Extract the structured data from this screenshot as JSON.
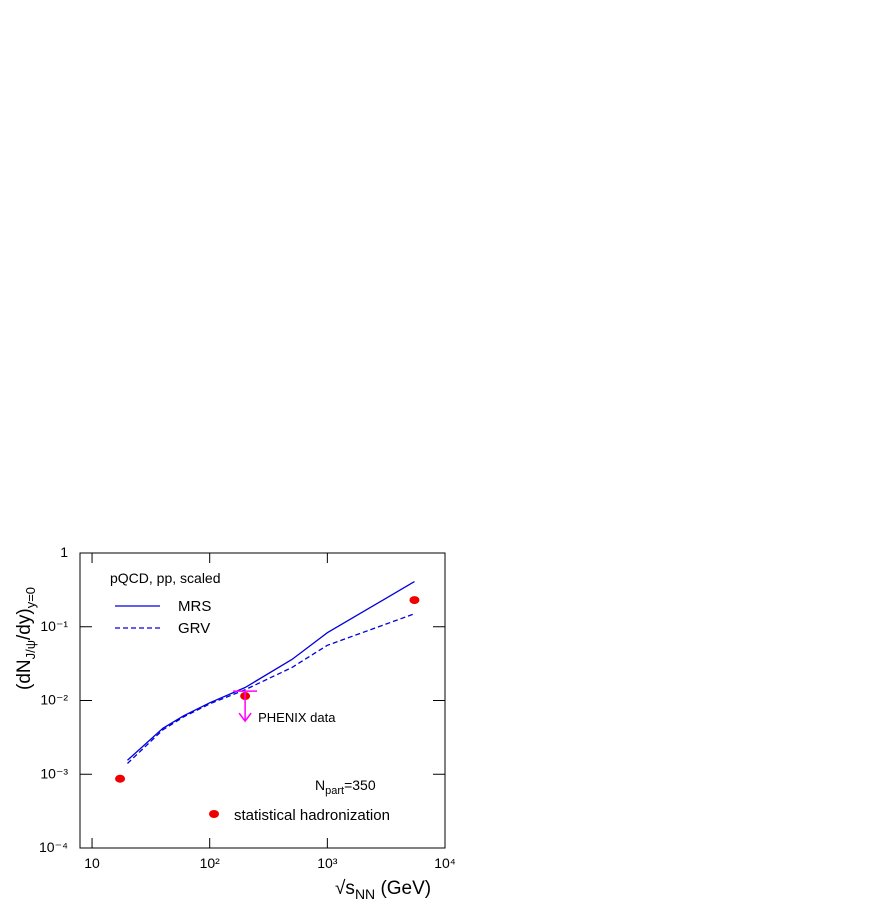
{
  "chart_data": {
    "type": "line",
    "x_label": {
      "base": "√s",
      "sub": "NN",
      "rest": " (GeV)"
    },
    "y_label": {
      "base": "(dN",
      "sub": "J/ψ",
      "mid": "/dy)",
      "sub2": "y=0"
    },
    "legend_title": "pQCD, pp, scaled",
    "annotation": {
      "base": "N",
      "sub": "part",
      "rest": "=350"
    },
    "log_x": true,
    "log_y": true,
    "xlim": [
      7.9,
      10000
    ],
    "ylim": [
      0.0001,
      1
    ],
    "xticks": [
      10,
      {
        "value": 100,
        "label": "10²"
      },
      {
        "value": 1000,
        "label": "10³"
      },
      {
        "value": 10000,
        "label": "10⁴"
      }
    ],
    "yticks": [
      {
        "value": 0.0001,
        "label": "10⁻⁴"
      },
      {
        "value": 0.001,
        "label": "10⁻³"
      },
      {
        "value": 0.01,
        "label": "10⁻²"
      },
      {
        "value": 0.1,
        "label": "10⁻¹"
      },
      1
    ],
    "series": [
      {
        "name": "MRS",
        "color": "#0000dd",
        "style": "solid",
        "x": [
          20,
          40,
          60,
          100,
          200,
          500,
          1000,
          5500
        ],
        "values": [
          0.00155,
          0.0042,
          0.0062,
          0.0093,
          0.015,
          0.036,
          0.083,
          0.41
        ]
      },
      {
        "name": "GRV",
        "color": "#0000dd",
        "style": "dashed",
        "x": [
          20,
          40,
          60,
          100,
          200,
          500,
          1000,
          5500
        ],
        "values": [
          0.0014,
          0.004,
          0.006,
          0.009,
          0.014,
          0.028,
          0.056,
          0.15
        ]
      },
      {
        "name": "statistical hadronization",
        "color": "#ee0000",
        "style": "points",
        "x": [
          17.3,
          200,
          5500
        ],
        "values": [
          0.00087,
          0.0115,
          0.23
        ]
      },
      {
        "name": "PHENIX data",
        "color": "#ff00ff",
        "style": "upper_limit",
        "x": [
          200
        ],
        "values": [
          0.0134
        ]
      }
    ]
  }
}
